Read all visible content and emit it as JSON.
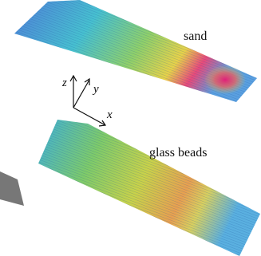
{
  "labels": {
    "top": "sand",
    "bottom": "glass beads"
  },
  "axes": {
    "z": "z",
    "y": "y",
    "x": "x"
  }
}
